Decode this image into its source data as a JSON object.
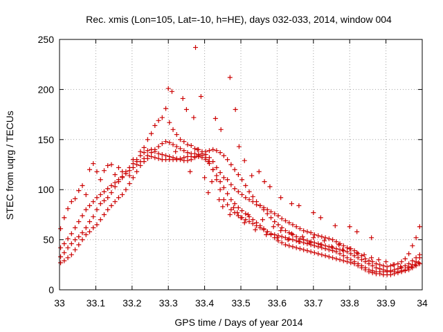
{
  "chart_data": {
    "type": "scatter",
    "title": "Rec. xmis (Lon=105, Lat=-10, h=HE), days 032-033, 2014, window 004",
    "xlabel": "GPS time / Days of year 2014",
    "ylabel": "STEC from uqrg / TECUs",
    "xlim": [
      33,
      34
    ],
    "ylim": [
      0,
      250
    ],
    "xticks": [
      33,
      33.1,
      33.2,
      33.3,
      33.4,
      33.5,
      33.6,
      33.7,
      33.8,
      33.9,
      34
    ],
    "xtick_labels": [
      "33",
      "33.1",
      "33.2",
      "33.3",
      "33.4",
      "33.5",
      "33.6",
      "33.7",
      "33.8",
      "33.9",
      "34"
    ],
    "yticks": [
      0,
      50,
      100,
      150,
      200,
      250
    ],
    "ytick_labels": [
      "0",
      "50",
      "100",
      "150",
      "200",
      "250"
    ],
    "grid": true,
    "marker": "plus",
    "color": "#cc0000",
    "series": [
      {
        "x": [
          33.003,
          33.013,
          33.023,
          33.033,
          33.043,
          33.053,
          33.063,
          33.073,
          33.083,
          33.093,
          33.103,
          33.113,
          33.123,
          33.133,
          33.143,
          33.153,
          33.163,
          33.173,
          33.183,
          33.193,
          33.203,
          33.213,
          33.223,
          33.233,
          33.243,
          33.253,
          33.263,
          33.273,
          33.283,
          33.293,
          33.303,
          33.313,
          33.323,
          33.333,
          33.343,
          33.353,
          33.363,
          33.373,
          33.383,
          33.393,
          33.403,
          33.413,
          33.423,
          33.433,
          33.443,
          33.453,
          33.463,
          33.473,
          33.483,
          33.493,
          33.503,
          33.513,
          33.523,
          33.533,
          33.543,
          33.553,
          33.563,
          33.573,
          33.583,
          33.593,
          33.603,
          33.613,
          33.623,
          33.633,
          33.643,
          33.653,
          33.663,
          33.673,
          33.683,
          33.693,
          33.703,
          33.713,
          33.723,
          33.733,
          33.743,
          33.753,
          33.763,
          33.773,
          33.783,
          33.793,
          33.803,
          33.813,
          33.823,
          33.833,
          33.843,
          33.853,
          33.863,
          33.873,
          33.883,
          33.893,
          33.903,
          33.913,
          33.923,
          33.933,
          33.943,
          33.953,
          33.963,
          33.973,
          33.983,
          33.993
        ],
        "y": [
          61,
          72,
          81,
          88,
          91,
          99,
          104,
          95,
          120,
          126,
          118,
          110,
          119,
          124,
          125,
          115,
          122,
          118,
          116,
          114,
          130,
          128,
          138,
          142,
          150,
          156,
          164,
          169,
          172,
          181,
          167,
          160,
          155,
          150,
          148,
          145,
          144,
          141,
          140,
          138,
          135,
          132,
          128,
          122,
          117,
          112,
          110,
          105,
          101,
          98,
          95,
          92,
          90,
          88,
          85,
          84,
          82,
          80,
          78,
          76,
          74,
          71,
          69,
          67,
          65,
          63,
          61,
          59,
          58,
          57,
          55,
          54,
          53,
          52,
          51,
          50,
          48,
          46,
          44,
          42,
          41,
          39,
          36,
          34,
          31,
          29,
          28,
          26,
          25,
          24,
          23,
          24,
          25,
          26,
          28,
          31,
          36,
          44,
          52,
          63
        ]
      },
      {
        "x": [
          33.003,
          33.013,
          33.023,
          33.033,
          33.043,
          33.053,
          33.063,
          33.073,
          33.083,
          33.093,
          33.103,
          33.113,
          33.123,
          33.133,
          33.143,
          33.153,
          33.163,
          33.173,
          33.183,
          33.193,
          33.203,
          33.213,
          33.223,
          33.233,
          33.243,
          33.253,
          33.263,
          33.273,
          33.283,
          33.293,
          33.303,
          33.313,
          33.323,
          33.333,
          33.343,
          33.353,
          33.363,
          33.373,
          33.383,
          33.393,
          33.403,
          33.413,
          33.423,
          33.433,
          33.443,
          33.453,
          33.463,
          33.473,
          33.483,
          33.493,
          33.503,
          33.513,
          33.523,
          33.533,
          33.543,
          33.553,
          33.563,
          33.573,
          33.583,
          33.593,
          33.603,
          33.613,
          33.623,
          33.633,
          33.643,
          33.653,
          33.663,
          33.673,
          33.683,
          33.693,
          33.703,
          33.713,
          33.723,
          33.733,
          33.743,
          33.753,
          33.763,
          33.773,
          33.783,
          33.793,
          33.803,
          33.813,
          33.823,
          33.833,
          33.843,
          33.853,
          33.863,
          33.873,
          33.883,
          33.893,
          33.903,
          33.913,
          33.923,
          33.933,
          33.943,
          33.953,
          33.963,
          33.973,
          33.983,
          33.993
        ],
        "y": [
          42,
          46,
          51,
          56,
          62,
          68,
          74,
          80,
          84,
          88,
          92,
          95,
          98,
          101,
          104,
          107,
          110,
          113,
          116,
          119,
          122,
          125,
          128,
          131,
          134,
          137,
          140,
          143,
          146,
          148,
          147,
          145,
          143,
          141,
          139,
          137,
          136,
          136,
          135,
          134,
          132,
          128,
          120,
          110,
          100,
          90,
          85,
          80,
          77,
          74,
          72,
          70,
          68,
          66,
          64,
          62,
          60,
          58,
          56,
          55,
          54,
          53,
          52,
          51,
          50,
          49,
          48,
          47,
          46,
          45,
          44,
          43,
          42,
          41,
          40,
          39,
          38,
          36,
          34,
          32,
          30,
          28,
          26,
          24,
          22,
          20,
          19,
          18,
          18,
          18,
          18,
          19,
          20,
          21,
          22,
          24,
          26,
          29,
          32,
          35
        ]
      },
      {
        "x": [
          33.003,
          33.013,
          33.023,
          33.033,
          33.043,
          33.053,
          33.063,
          33.073,
          33.083,
          33.093,
          33.103,
          33.113,
          33.123,
          33.133,
          33.143,
          33.153,
          33.163,
          33.173,
          33.183,
          33.193,
          33.203,
          33.213,
          33.223,
          33.233,
          33.243,
          33.253,
          33.263,
          33.273,
          33.283,
          33.293,
          33.303,
          33.313,
          33.323,
          33.333,
          33.343,
          33.353,
          33.363,
          33.373,
          33.383,
          33.393,
          33.403,
          33.413,
          33.423,
          33.433,
          33.443,
          33.453,
          33.463,
          33.473,
          33.483,
          33.493,
          33.503,
          33.513,
          33.523,
          33.533,
          33.543,
          33.553,
          33.563,
          33.573,
          33.583,
          33.593,
          33.603,
          33.613,
          33.623,
          33.633,
          33.643,
          33.653,
          33.663,
          33.673,
          33.683,
          33.693,
          33.703,
          33.713,
          33.723,
          33.733,
          33.743,
          33.753,
          33.763,
          33.773,
          33.783,
          33.793,
          33.803,
          33.813,
          33.823,
          33.833,
          33.843,
          33.853,
          33.863,
          33.873,
          33.883,
          33.893,
          33.903,
          33.913,
          33.923,
          33.933,
          33.943,
          33.953,
          33.963,
          33.973,
          33.983,
          33.993
        ],
        "y": [
          33,
          37,
          42,
          46,
          50,
          53,
          57,
          62,
          68,
          73,
          80,
          86,
          89,
          92,
          97,
          103,
          108,
          112,
          118,
          122,
          126,
          130,
          134,
          137,
          139,
          140,
          138,
          136,
          135,
          134,
          133,
          132,
          131,
          130,
          129,
          129,
          130,
          132,
          134,
          136,
          138,
          139,
          140,
          139,
          137,
          134,
          130,
          125,
          120,
          115,
          110,
          104,
          98,
          93,
          88,
          84,
          80,
          76,
          72,
          68,
          65,
          62,
          59,
          57,
          55,
          53,
          51,
          50,
          49,
          48,
          47,
          46,
          45,
          44,
          43,
          42,
          41,
          40,
          39,
          38,
          36,
          34,
          32,
          30,
          28,
          26,
          24,
          22,
          21,
          20,
          19,
          18,
          18,
          18,
          19,
          20,
          22,
          25,
          28,
          32
        ]
      },
      {
        "x": [
          33.003,
          33.013,
          33.023,
          33.033,
          33.043,
          33.053,
          33.063,
          33.073,
          33.083,
          33.093,
          33.103,
          33.113,
          33.123,
          33.133,
          33.143,
          33.153,
          33.163,
          33.173,
          33.183,
          33.193,
          33.203,
          33.213,
          33.223,
          33.233,
          33.243,
          33.253,
          33.263,
          33.273,
          33.283,
          33.293,
          33.303,
          33.313,
          33.323,
          33.333,
          33.343,
          33.353,
          33.363,
          33.373,
          33.383,
          33.393,
          33.403,
          33.413,
          33.423,
          33.433,
          33.443,
          33.453,
          33.463,
          33.473,
          33.483,
          33.493,
          33.503,
          33.513,
          33.523,
          33.533,
          33.543,
          33.553,
          33.563,
          33.573,
          33.583,
          33.593,
          33.603,
          33.613,
          33.623,
          33.633,
          33.643,
          33.653,
          33.663,
          33.673,
          33.683,
          33.693,
          33.703,
          33.713,
          33.723,
          33.733,
          33.743,
          33.753,
          33.763,
          33.773,
          33.783,
          33.793,
          33.803,
          33.813,
          33.823,
          33.833,
          33.843,
          33.853,
          33.863,
          33.873,
          33.883,
          33.893,
          33.903,
          33.913,
          33.923,
          33.933,
          33.943,
          33.953,
          33.963,
          33.973,
          33.983,
          33.993
        ],
        "y": [
          27,
          29,
          32,
          35,
          40,
          45,
          50,
          55,
          58,
          62,
          65,
          70,
          75,
          80,
          84,
          88,
          92,
          95,
          100,
          106,
          112,
          118,
          124,
          128,
          131,
          133,
          132,
          131,
          130,
          130,
          130,
          130,
          130,
          131,
          132,
          133,
          133,
          133,
          133,
          132,
          130,
          126,
          120,
          114,
          108,
          102,
          96,
          90,
          86,
          82,
          79,
          76,
          73,
          70,
          67,
          64,
          61,
          58,
          55,
          52,
          49,
          47,
          45,
          44,
          43,
          42,
          41,
          40,
          39,
          38,
          37,
          36,
          35,
          34,
          33,
          32,
          31,
          30,
          29,
          28,
          27,
          26,
          24,
          22,
          20,
          18,
          17,
          16,
          16,
          15,
          15,
          15,
          16,
          17,
          18,
          19,
          20,
          22,
          24,
          26
        ]
      },
      {
        "x": [
          33.36,
          33.38,
          33.4,
          33.41,
          33.42,
          33.44,
          33.45,
          33.47,
          33.48,
          33.49,
          33.5,
          33.51,
          33.52,
          33.54,
          33.56,
          33.57,
          33.59,
          33.6,
          33.61,
          33.63,
          33.64,
          33.66,
          33.67,
          33.69,
          33.7,
          33.72,
          33.73,
          33.75,
          33.77,
          33.78,
          33.8,
          33.82,
          33.84,
          33.86,
          33.88,
          33.9,
          33.92,
          33.94,
          33.96,
          33.97,
          33.98,
          33.99
        ],
        "y": [
          118,
          140,
          112,
          97,
          108,
          90,
          83,
          75,
          82,
          77,
          72,
          67,
          75,
          60,
          70,
          55,
          63,
          52,
          59,
          50,
          56,
          48,
          53,
          47,
          52,
          45,
          49,
          43,
          45,
          40,
          41,
          37,
          35,
          32,
          30,
          28,
          25,
          23,
          22,
          23,
          25,
          27
        ]
      },
      {
        "x": [
          33.3,
          33.31,
          33.32,
          33.34,
          33.35,
          33.37,
          33.375,
          33.39,
          33.41,
          33.43,
          33.445,
          33.47,
          33.485,
          33.495,
          33.51,
          33.53,
          33.55,
          33.565,
          33.58,
          33.61,
          33.64,
          33.66,
          33.7,
          33.72,
          33.76,
          33.8,
          33.82,
          33.86
        ],
        "y": [
          201,
          198,
          138,
          191,
          180,
          172,
          242,
          193,
          128,
          171,
          160,
          212,
          180,
          143,
          129,
          114,
          118,
          108,
          103,
          92,
          86,
          84,
          77,
          72,
          64,
          63,
          58,
          52
        ]
      }
    ]
  }
}
